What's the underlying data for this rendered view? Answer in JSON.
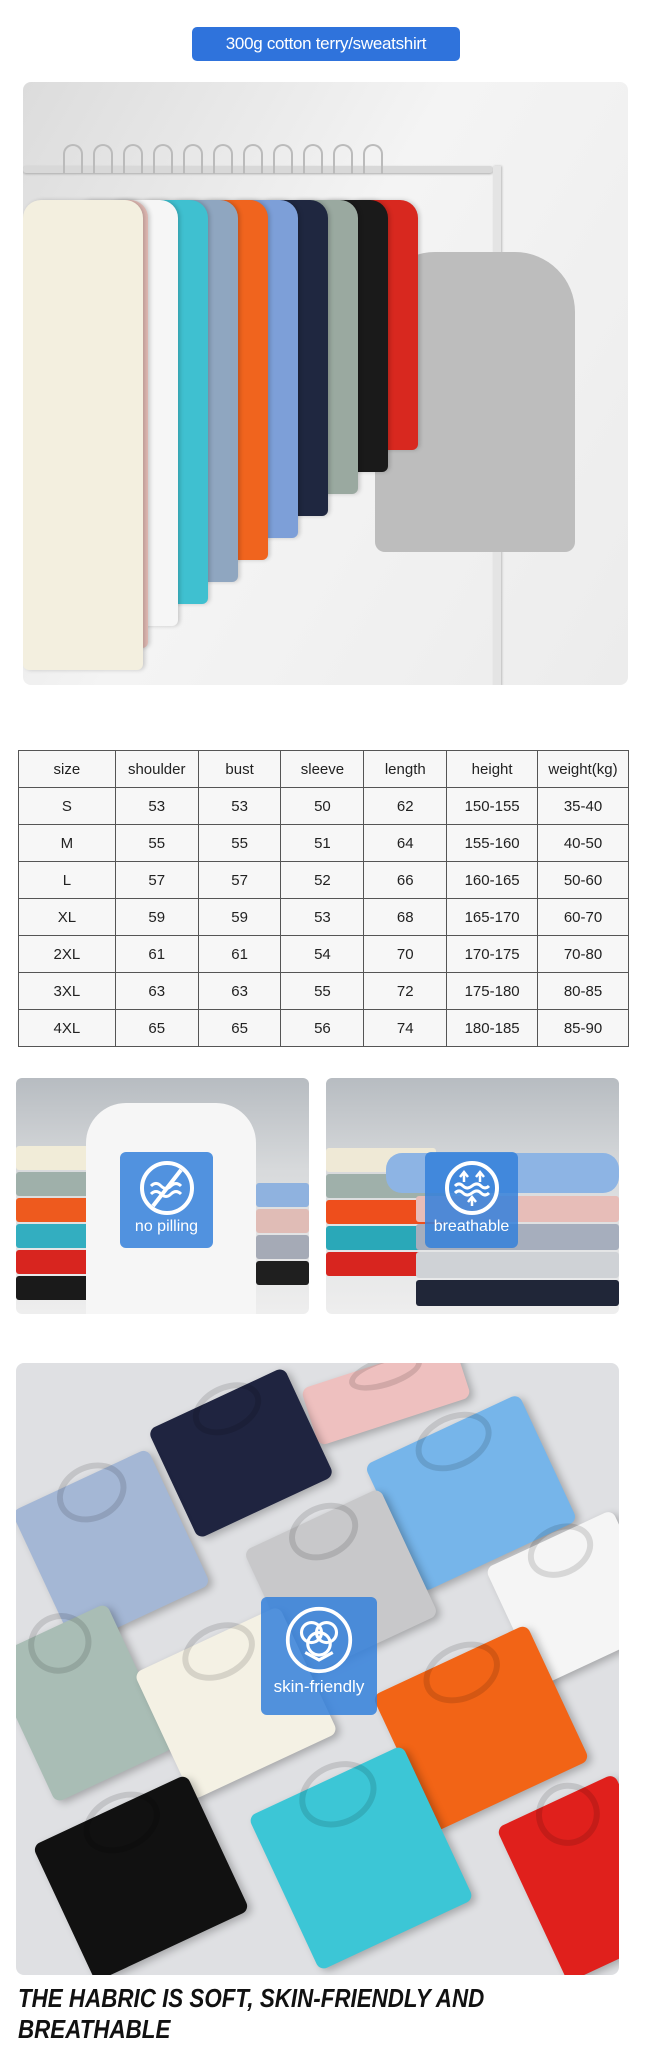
{
  "title_badge": "300g cotton terry/sweatshirt",
  "size_table": {
    "headers": [
      "size",
      "shoulder",
      "bust",
      "sleeve",
      "length",
      "height",
      "weight(kg)"
    ],
    "rows": [
      [
        "S",
        "53",
        "53",
        "50",
        "62",
        "150-155",
        "35-40"
      ],
      [
        "M",
        "55",
        "55",
        "51",
        "64",
        "155-160",
        "40-50"
      ],
      [
        "L",
        "57",
        "57",
        "52",
        "66",
        "160-165",
        "50-60"
      ],
      [
        "XL",
        "59",
        "59",
        "53",
        "68",
        "165-170",
        "60-70"
      ],
      [
        "2XL",
        "61",
        "61",
        "54",
        "70",
        "170-175",
        "70-80"
      ],
      [
        "3XL",
        "63",
        "63",
        "55",
        "72",
        "175-180",
        "80-85"
      ],
      [
        "4XL",
        "65",
        "65",
        "56",
        "74",
        "180-185",
        "85-90"
      ]
    ]
  },
  "features": [
    {
      "label": "no pilling",
      "icon": "no-pilling-icon"
    },
    {
      "label": "breathable",
      "icon": "breathable-icon"
    },
    {
      "label": "skin-friendly",
      "icon": "cotton-flower-icon"
    }
  ],
  "caption": "THE HABRIC IS SOFT, SKIN-FRIENDLY AND BREATHABLE",
  "colors": {
    "accent": "#2f73dc",
    "badge": "#3480da"
  },
  "hanging_colors": [
    "#f3efdf",
    "#e0b9b3",
    "#f6f6f6",
    "#3fc0d0",
    "#8fa6c0",
    "#f0641e",
    "#7d9fd8",
    "#1f2740",
    "#9aa9a0",
    "#1a1a1a",
    "#d8281f"
  ]
}
